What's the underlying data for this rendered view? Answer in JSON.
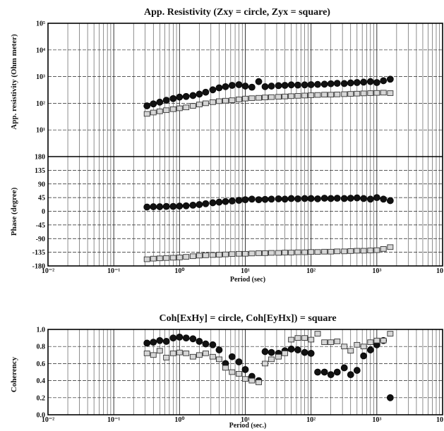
{
  "chart_data": [
    {
      "id": "resistivity",
      "type": "scatter",
      "title": "App. Resistivity (Zxy = circle,  Zyx = square)",
      "ylabel": "App. resistivity (Ohm meter)",
      "xlabel": "",
      "xscale": "log",
      "yscale": "log",
      "xlim": [
        0.01,
        10000
      ],
      "ylim": [
        1,
        100000
      ],
      "grid": true,
      "x_tick_labels": [
        "10⁻²",
        "10⁻¹",
        "10⁰",
        "10¹",
        "10²",
        "10³",
        "10"
      ],
      "y_tick_labels": [
        "10⁵",
        "10⁴",
        "10³",
        "10²",
        "10¹"
      ],
      "series": [
        {
          "name": "Zxy",
          "marker": "circle",
          "x": [
            0.32,
            0.4,
            0.5,
            0.63,
            0.8,
            1.0,
            1.26,
            1.6,
            2.0,
            2.5,
            3.2,
            4.0,
            5.0,
            6.3,
            8.0,
            10,
            12.6,
            16,
            20,
            25,
            32,
            40,
            50,
            63,
            80,
            100,
            126,
            160,
            200,
            250,
            320,
            400,
            500,
            630,
            800,
            1000,
            1260,
            1600
          ],
          "y": [
            80,
            95,
            110,
            130,
            150,
            170,
            180,
            195,
            220,
            260,
            320,
            380,
            420,
            470,
            500,
            440,
            400,
            650,
            420,
            440,
            460,
            470,
            490,
            480,
            490,
            500,
            510,
            520,
            540,
            560,
            550,
            580,
            600,
            620,
            650,
            600,
            700,
            800
          ]
        },
        {
          "name": "Zyx",
          "marker": "square",
          "x": [
            0.32,
            0.4,
            0.5,
            0.63,
            0.8,
            1.0,
            1.26,
            1.6,
            2.0,
            2.5,
            3.2,
            4.0,
            5.0,
            6.3,
            8.0,
            10,
            12.6,
            16,
            20,
            25,
            32,
            40,
            50,
            63,
            80,
            100,
            126,
            160,
            200,
            250,
            320,
            400,
            500,
            630,
            800,
            1000,
            1260,
            1600
          ],
          "y": [
            40,
            45,
            50,
            55,
            60,
            65,
            70,
            80,
            90,
            100,
            110,
            120,
            125,
            130,
            140,
            150,
            155,
            160,
            165,
            170,
            175,
            180,
            185,
            190,
            195,
            200,
            205,
            210,
            210,
            215,
            220,
            225,
            230,
            235,
            240,
            245,
            250,
            240
          ]
        }
      ]
    },
    {
      "id": "phase",
      "type": "scatter",
      "title": "",
      "ylabel": "Phase (degree)",
      "xlabel": "Period (sec)",
      "xscale": "log",
      "xlim": [
        0.01,
        10000
      ],
      "ylim": [
        -180,
        180
      ],
      "grid": true,
      "x_tick_labels": [
        "10⁻²",
        "10⁻¹",
        "10⁰",
        "10¹",
        "10²",
        "10³",
        "10"
      ],
      "y_tick_labels": [
        "180",
        "135",
        "90",
        "45",
        "0",
        "-45",
        "-90",
        "-135",
        "-180"
      ],
      "series": [
        {
          "name": "Zxy",
          "marker": "circle",
          "x": [
            0.32,
            0.4,
            0.5,
            0.63,
            0.8,
            1.0,
            1.26,
            1.6,
            2.0,
            2.5,
            3.2,
            4.0,
            5.0,
            6.3,
            8.0,
            10,
            12.6,
            16,
            20,
            25,
            32,
            40,
            50,
            63,
            80,
            100,
            126,
            160,
            200,
            250,
            320,
            400,
            500,
            630,
            800,
            1000,
            1260,
            1600
          ],
          "y": [
            14,
            15,
            15,
            16,
            16,
            17,
            18,
            20,
            22,
            25,
            28,
            30,
            32,
            34,
            36,
            38,
            40,
            38,
            39,
            40,
            41,
            40,
            42,
            41,
            42,
            42,
            41,
            43,
            42,
            43,
            42,
            43,
            44,
            42,
            40,
            45,
            40,
            35
          ]
        },
        {
          "name": "Zyx",
          "marker": "square",
          "x": [
            0.32,
            0.4,
            0.5,
            0.63,
            0.8,
            1.0,
            1.26,
            1.6,
            2.0,
            2.5,
            3.2,
            4.0,
            5.0,
            6.3,
            8.0,
            10,
            12.6,
            16,
            20,
            25,
            32,
            40,
            50,
            63,
            80,
            100,
            126,
            160,
            200,
            250,
            320,
            400,
            500,
            630,
            800,
            1000,
            1260,
            1600
          ],
          "y": [
            -158,
            -156,
            -155,
            -154,
            -153,
            -152,
            -150,
            -148,
            -146,
            -145,
            -144,
            -143,
            -142,
            -141,
            -140,
            -140,
            -139,
            -138,
            -138,
            -137,
            -137,
            -136,
            -136,
            -135,
            -135,
            -134,
            -134,
            -133,
            -133,
            -132,
            -132,
            -131,
            -130,
            -130,
            -129,
            -128,
            -124,
            -118
          ]
        }
      ]
    },
    {
      "id": "coherency",
      "type": "scatter",
      "title": "Coh[ExHy] = circle, Coh[EyHx]) = square",
      "ylabel": "Coherency",
      "xlabel": "Period (sec.)",
      "xscale": "log",
      "xlim": [
        0.01,
        10000
      ],
      "ylim": [
        0,
        1
      ],
      "grid": true,
      "x_tick_labels": [
        "10⁻²",
        "10⁻¹",
        "10⁰",
        "10¹",
        "10²",
        "10³",
        "10"
      ],
      "y_tick_labels": [
        "1.0",
        "0.8",
        "0.6",
        "0.4",
        "0.2",
        "0.0"
      ],
      "series": [
        {
          "name": "Coh[ExHy]",
          "marker": "circle",
          "x": [
            0.32,
            0.4,
            0.5,
            0.63,
            0.8,
            1.0,
            1.26,
            1.6,
            2.0,
            2.5,
            3.2,
            4.0,
            5.0,
            6.3,
            8.0,
            10,
            12.6,
            16,
            20,
            25,
            32,
            40,
            50,
            63,
            80,
            100,
            126,
            160,
            200,
            250,
            320,
            400,
            500,
            630,
            800,
            1000,
            1260,
            1600
          ],
          "y": [
            0.84,
            0.85,
            0.87,
            0.86,
            0.9,
            0.91,
            0.9,
            0.89,
            0.86,
            0.83,
            0.82,
            0.76,
            0.6,
            0.68,
            0.62,
            0.53,
            0.45,
            0.4,
            0.74,
            0.73,
            0.72,
            0.75,
            0.77,
            0.76,
            0.73,
            0.72,
            0.5,
            0.5,
            0.47,
            0.5,
            0.55,
            0.47,
            0.52,
            0.69,
            0.76,
            0.82,
            0.87,
            0.2
          ]
        },
        {
          "name": "Coh[EyHx]",
          "marker": "square",
          "x": [
            0.32,
            0.4,
            0.5,
            0.63,
            0.8,
            1.0,
            1.26,
            1.6,
            2.0,
            2.5,
            3.2,
            4.0,
            5.0,
            6.3,
            8.0,
            10,
            12.6,
            16,
            20,
            25,
            32,
            40,
            50,
            63,
            80,
            100,
            126,
            160,
            200,
            250,
            320,
            400,
            500,
            630,
            800,
            1000,
            1260,
            1600
          ],
          "y": [
            0.72,
            0.7,
            0.75,
            0.67,
            0.72,
            0.73,
            0.72,
            0.68,
            0.7,
            0.72,
            0.68,
            0.65,
            0.55,
            0.5,
            0.48,
            0.42,
            0.4,
            0.38,
            0.6,
            0.65,
            0.68,
            0.72,
            0.88,
            0.9,
            0.9,
            0.88,
            0.95,
            0.85,
            0.85,
            0.86,
            0.8,
            0.75,
            0.82,
            0.8,
            0.85,
            0.87,
            0.87,
            0.95
          ]
        }
      ]
    }
  ]
}
